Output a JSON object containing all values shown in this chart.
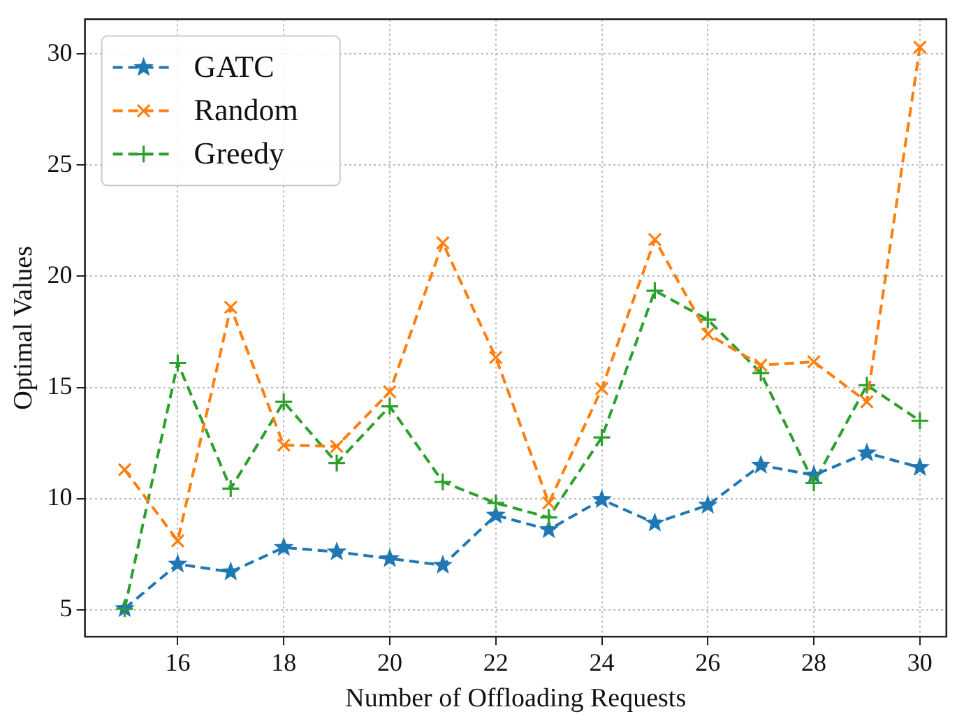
{
  "chart_data": {
    "type": "line",
    "xlabel": "Number of Offloading Requests",
    "ylabel": "Optimal Values",
    "x": [
      15,
      16,
      17,
      18,
      19,
      20,
      21,
      22,
      23,
      24,
      25,
      26,
      27,
      28,
      29,
      30
    ],
    "series": [
      {
        "name": "GATC",
        "color": "#1f77b4",
        "marker": "star",
        "values": [
          5.05,
          7.05,
          6.7,
          7.8,
          7.6,
          7.3,
          7.0,
          9.25,
          8.6,
          9.95,
          8.9,
          9.7,
          11.5,
          11.05,
          12.05,
          11.4
        ]
      },
      {
        "name": "Random",
        "color": "#ff7f0e",
        "marker": "cross",
        "values": [
          11.3,
          8.1,
          18.6,
          12.4,
          12.35,
          14.8,
          21.5,
          16.35,
          9.8,
          14.95,
          21.65,
          17.4,
          16.0,
          16.15,
          14.35,
          30.3
        ]
      },
      {
        "name": "Greedy",
        "color": "#2ca02c",
        "marker": "plus",
        "values": [
          5.05,
          16.1,
          10.45,
          14.35,
          11.6,
          14.15,
          10.75,
          9.8,
          9.15,
          12.75,
          19.35,
          18.05,
          15.65,
          10.7,
          15.1,
          13.5
        ]
      }
    ],
    "line_style": "dashed",
    "xlim": [
      14.25,
      30.5
    ],
    "xticks": [
      16,
      18,
      20,
      22,
      24,
      26,
      28,
      30
    ],
    "ylim": [
      3.79,
      31.56
    ],
    "yticks": [
      5,
      10,
      15,
      20,
      25,
      30
    ],
    "grid": true,
    "legend": "top left"
  }
}
